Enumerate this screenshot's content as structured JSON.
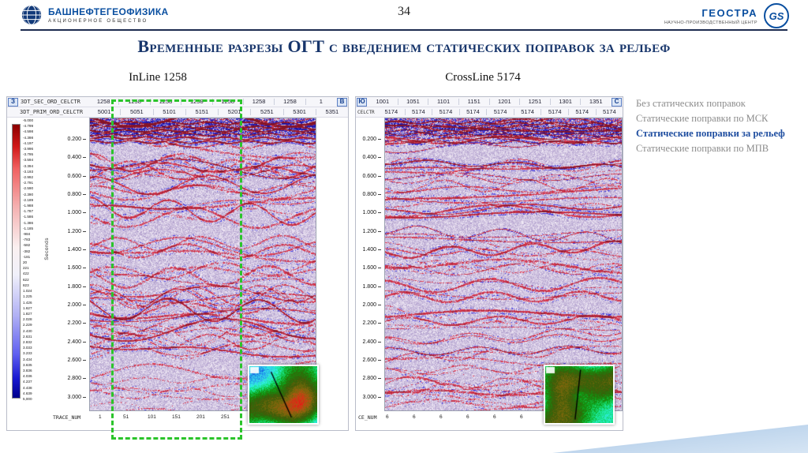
{
  "page": {
    "number": "34"
  },
  "header": {
    "company": "БАШНЕФТЕГЕОФИЗИКА",
    "company_sub": "АКЦИОНЕРНОЕ ОБЩЕСТВО",
    "center": "ГЕОСТРА",
    "center_sub": "НАУЧНО-ПРОИЗВОДСТВЕННЫЙ ЦЕНТР",
    "gs_monogram": "GS"
  },
  "title": "Временные разрезы ОГТ с введением статических поправок за рельеф",
  "left_panel": {
    "subtitle": "InLine 1258",
    "corner_left": "З",
    "corner_right": "В",
    "row1_label": "3DT_SEC_ORD_CELCTR",
    "row1_values": [
      "1258",
      "1258",
      "1258",
      "1258",
      "1258",
      "1258",
      "1258",
      "1"
    ],
    "row2_label": "3DT_PRIM_ORD_CELCTR",
    "row2_values": [
      "5001",
      "5051",
      "5101",
      "5151",
      "5201",
      "5251",
      "5301",
      "5351"
    ],
    "seconds_label": "Seconds",
    "trace_label": "TRACE_NUM",
    "trace_values": [
      "1",
      "51",
      "101",
      "151",
      "201",
      "251"
    ]
  },
  "right_panel": {
    "subtitle": "CrossLine 5174",
    "corner_left": "Ю",
    "corner_right": "С",
    "row1_values": [
      "1001",
      "1051",
      "1101",
      "1151",
      "1201",
      "1251",
      "1301",
      "1351"
    ],
    "row2_label": "CELCTR",
    "row2_values": [
      "5174",
      "5174",
      "5174",
      "5174",
      "5174",
      "5174",
      "5174",
      "5174",
      "5174"
    ],
    "trace_label": "CE_NUM",
    "trace_values": [
      "6",
      "6",
      "6",
      "6",
      "6",
      "6",
      "6"
    ]
  },
  "time_ticks": [
    "0.200",
    "0.400",
    "0.600",
    "0.800",
    "1.000",
    "1.200",
    "1.400",
    "1.600",
    "1.800",
    "2.000",
    "2.200",
    "2.400",
    "2.600",
    "2.800",
    "3.000"
  ],
  "colorbar_values": [
    "-5.000",
    "-4.799",
    "-4.598",
    "-4.398",
    "-4.197",
    "-3.996",
    "-3.795",
    "-3.594",
    "-3.394",
    "-3.193",
    "-2.992",
    "-2.791",
    "-2.590",
    "-2.390",
    "-2.189",
    "-1.988",
    "-1.787",
    "-1.586",
    "-1.386",
    "-1.185",
    "-984",
    "-783",
    "-582",
    "-382",
    "-181",
    "20",
    "221",
    "422",
    "622",
    "823",
    "1.024",
    "1.225",
    "1.426",
    "1.627",
    "1.827",
    "2.028",
    "2.229",
    "2.430",
    "2.631",
    "2.832",
    "3.033",
    "3.233",
    "3.434",
    "3.635",
    "3.836",
    "4.036",
    "4.237",
    "4.438",
    "4.639",
    "5,000"
  ],
  "legend": {
    "items": [
      {
        "label": "Без статических поправок",
        "active": false
      },
      {
        "label": "Статические поправки по МСК",
        "active": false
      },
      {
        "label": "Статические поправки за рельеф",
        "active": true
      },
      {
        "label": "Статические поправки по МПВ",
        "active": false
      }
    ]
  },
  "colors": {
    "brand_blue": "#0a4fa0",
    "title_navy": "#17356b",
    "legend_gray": "#8c8c8c",
    "legend_active_blue": "#1f4ea0",
    "highlight_green": "#2bc42b"
  }
}
